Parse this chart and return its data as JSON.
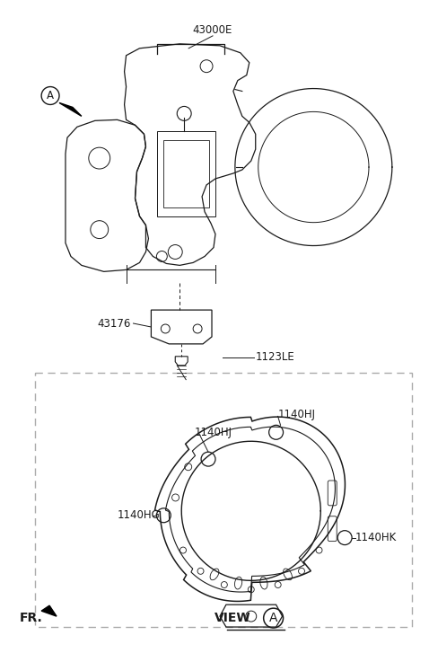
{
  "bg_color": "#ffffff",
  "line_color": "#1a1a1a",
  "dash_color": "#aaaaaa",
  "label_43000E": "43000E",
  "label_43176": "43176",
  "label_1123LE": "1123LE",
  "label_1140HJ_left": "1140HJ",
  "label_1140HJ_right": "1140HJ",
  "label_1140HG": "1140HG",
  "label_1140HK": "1140HK",
  "label_FR": "FR.",
  "label_VIEW": "VIEW",
  "label_A": "A",
  "fs_label": 8.5,
  "fs_view": 10,
  "fs_fr": 10
}
